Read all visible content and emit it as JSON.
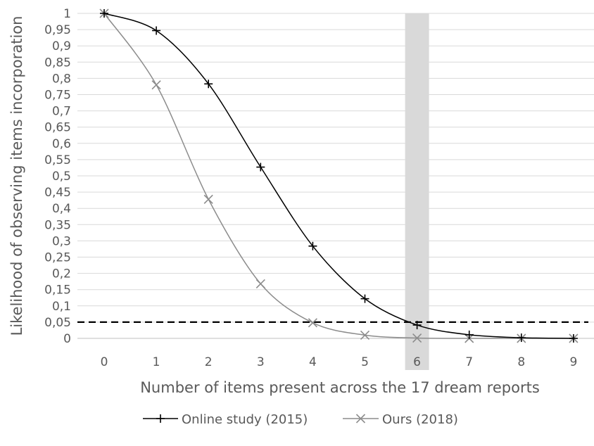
{
  "chart_data": {
    "type": "line",
    "xlabel": "Number of items present across the 17 dream reports",
    "ylabel": "Likelihood of observing items incorporation",
    "x": [
      0,
      1,
      2,
      3,
      4,
      5,
      6,
      7,
      8,
      9
    ],
    "x_tick_labels": [
      "0",
      "1",
      "2",
      "3",
      "4",
      "5",
      "6",
      "7",
      "8",
      "9"
    ],
    "ylim": [
      0,
      1
    ],
    "y_ticks": [
      0,
      0.05,
      0.1,
      0.15,
      0.2,
      0.25,
      0.3,
      0.35,
      0.4,
      0.45,
      0.5,
      0.55,
      0.6,
      0.65,
      0.7,
      0.75,
      0.8,
      0.85,
      0.9,
      0.95,
      1
    ],
    "y_tick_labels": [
      "0",
      "0,05",
      "0,1",
      "0,15",
      "0,2",
      "0,25",
      "0,3",
      "0,35",
      "0,4",
      "0,45",
      "0,5",
      "0,55",
      "0,6",
      "0,65",
      "0,7",
      "0,75",
      "0,8",
      "0,85",
      "0,9",
      "0,95",
      "1"
    ],
    "grid": "horizontal",
    "legend": "bottom",
    "series": [
      {
        "name": "Online study (2015)",
        "marker": "plus",
        "color": "#000000",
        "values": [
          1.0,
          0.947,
          0.783,
          0.527,
          0.284,
          0.122,
          0.041,
          0.011,
          0.002,
          0.0
        ]
      },
      {
        "name": "Ours (2018)",
        "marker": "x",
        "color": "#8c8c8c",
        "values": [
          1.0,
          0.78,
          0.428,
          0.168,
          0.048,
          0.01,
          0.001,
          0.0,
          0.0,
          0.0
        ]
      }
    ],
    "threshold": {
      "value": 0.05,
      "style": "dashed",
      "color": "#000000"
    },
    "highlight_band": {
      "x": 6,
      "color": "#d9d9d9"
    }
  }
}
